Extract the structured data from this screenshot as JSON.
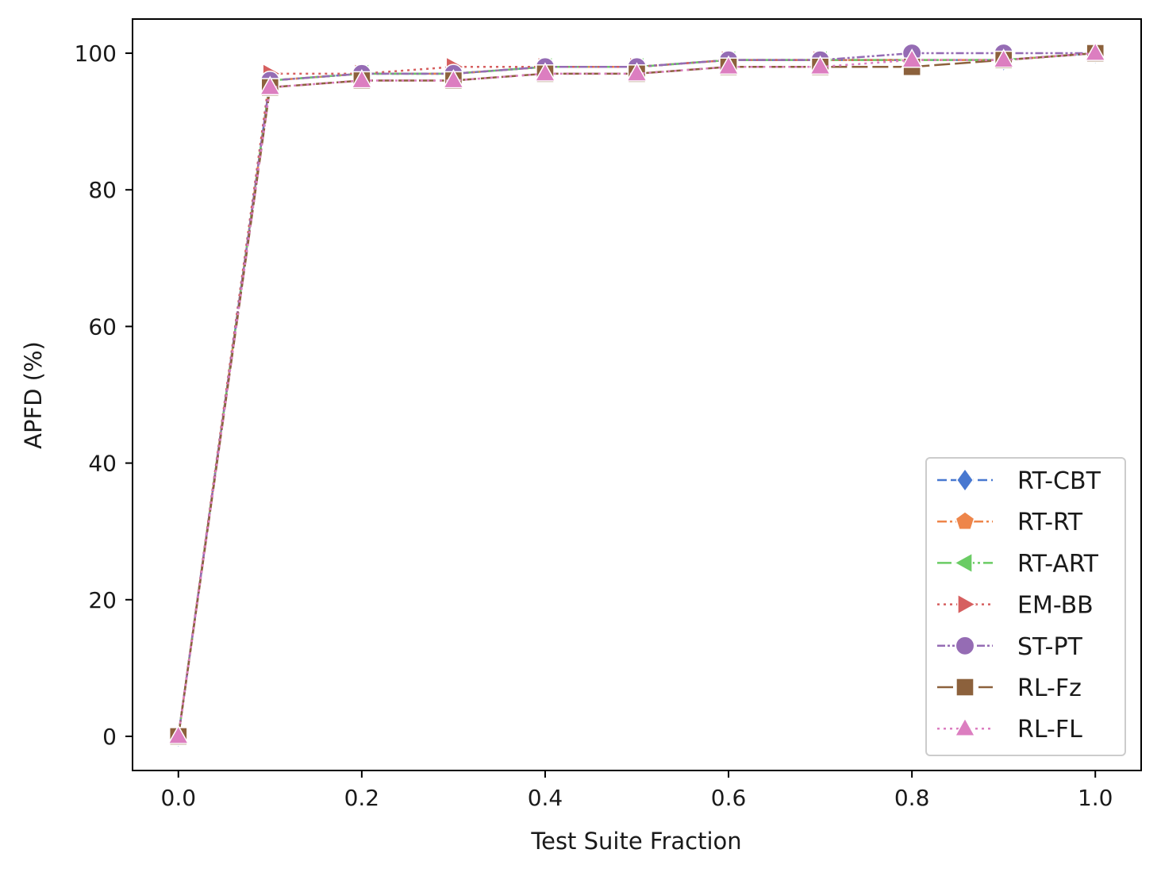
{
  "chart_data": {
    "type": "line",
    "title": "",
    "xlabel": "Test Suite Fraction",
    "ylabel": "APFD (%)",
    "xlim": [
      -0.05,
      1.05
    ],
    "ylim": [
      -5,
      105
    ],
    "xticks": [
      0.0,
      0.2,
      0.4,
      0.6,
      0.8,
      1.0
    ],
    "xtick_labels": [
      "0.0",
      "0.2",
      "0.4",
      "0.6",
      "0.8",
      "1.0"
    ],
    "yticks": [
      0,
      20,
      40,
      60,
      80,
      100
    ],
    "ytick_labels": [
      "0",
      "20",
      "40",
      "60",
      "80",
      "100"
    ],
    "grid": false,
    "legend_position": "lower-right",
    "x": [
      0.0,
      0.1,
      0.2,
      0.3,
      0.4,
      0.5,
      0.6,
      0.7,
      0.8,
      0.9,
      1.0
    ],
    "series": [
      {
        "name": "RT-CBT",
        "color": "#4878d0",
        "marker": "diamond",
        "dash": "dashed",
        "values": [
          0,
          96,
          97,
          97,
          98,
          98,
          99,
          99,
          99,
          99,
          100
        ]
      },
      {
        "name": "RT-RT",
        "color": "#ee854a",
        "marker": "pentagon",
        "dash": "dashdot",
        "values": [
          0,
          96,
          97,
          97,
          98,
          98,
          99,
          99,
          99,
          99,
          100
        ]
      },
      {
        "name": "RT-ART",
        "color": "#6acc64",
        "marker": "triangle-left",
        "dash": "longdashdot",
        "values": [
          0,
          96,
          97,
          97,
          98,
          98,
          99,
          99,
          99,
          99,
          100
        ]
      },
      {
        "name": "EM-BB",
        "color": "#d65f5f",
        "marker": "triangle-right",
        "dash": "dotted",
        "values": [
          0,
          97,
          97,
          98,
          98,
          98,
          99,
          99,
          99,
          99,
          100
        ]
      },
      {
        "name": "ST-PT",
        "color": "#956cb4",
        "marker": "circle",
        "dash": "dashdotdot",
        "values": [
          0,
          96,
          97,
          97,
          98,
          98,
          99,
          99,
          100,
          100,
          100
        ]
      },
      {
        "name": "RL-Fz",
        "color": "#8c613c",
        "marker": "square",
        "dash": "longdash",
        "values": [
          0,
          95,
          96,
          96,
          97,
          97,
          98,
          98,
          98,
          99,
          100
        ]
      },
      {
        "name": "RL-FL",
        "color": "#dc7ec0",
        "marker": "triangle-up",
        "dash": "dotted",
        "values": [
          0,
          95,
          96,
          96,
          97,
          97,
          98,
          98,
          99,
          99,
          100
        ]
      }
    ]
  }
}
